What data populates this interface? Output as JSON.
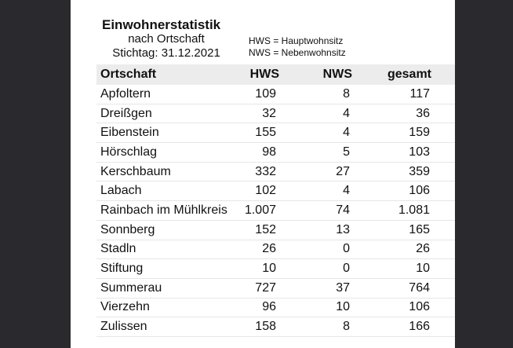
{
  "header": {
    "title": "Einwohnerstatistik",
    "subtitle": "nach Ortschaft",
    "date": "Stichtag: 31.12.2021"
  },
  "legend": {
    "hws": "HWS = Hauptwohnsitz",
    "nws": "NWS = Nebenwohnsitz"
  },
  "table": {
    "columns": [
      "Ortschaft",
      "HWS",
      "NWS",
      "gesamt"
    ],
    "rows": [
      [
        "Apfoltern",
        "109",
        "8",
        "117"
      ],
      [
        "Dreißgen",
        "32",
        "4",
        "36"
      ],
      [
        "Eibenstein",
        "155",
        "4",
        "159"
      ],
      [
        "Hörschlag",
        "98",
        "5",
        "103"
      ],
      [
        "Kerschbaum",
        "332",
        "27",
        "359"
      ],
      [
        "Labach",
        "102",
        "4",
        "106"
      ],
      [
        "Rainbach im Mühlkreis",
        "1.007",
        "74",
        "1.081"
      ],
      [
        "Sonnberg",
        "152",
        "13",
        "165"
      ],
      [
        "Stadln",
        "26",
        "0",
        "26"
      ],
      [
        "Stiftung",
        "10",
        "0",
        "10"
      ],
      [
        "Summerau",
        "727",
        "37",
        "764"
      ],
      [
        "Vierzehn",
        "96",
        "10",
        "106"
      ],
      [
        "Zulissen",
        "158",
        "8",
        "166"
      ]
    ]
  }
}
